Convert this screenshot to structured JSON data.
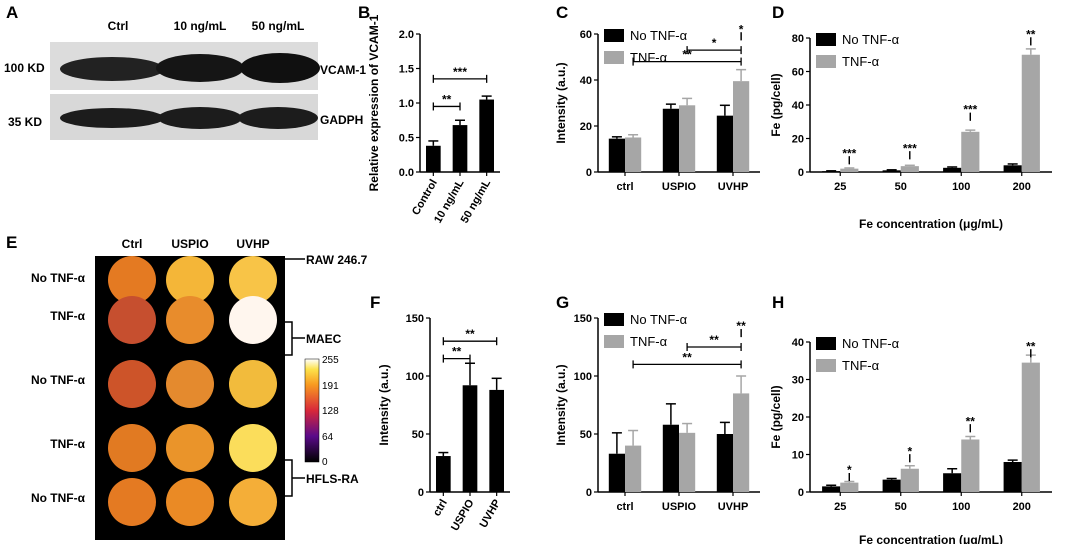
{
  "panel_letters": [
    "A",
    "B",
    "C",
    "D",
    "E",
    "F",
    "G",
    "H"
  ],
  "blot": {
    "lanes": [
      "Ctrl",
      "10 ng/mL",
      "50 ng/mL"
    ],
    "rows": [
      {
        "weight": "100 KD",
        "protein": "VCAM-1"
      },
      {
        "weight": "35 KD",
        "protein": "GADPH"
      }
    ]
  },
  "imaging": {
    "columns": [
      "Ctrl",
      "USPIO",
      "UVHP"
    ],
    "rows": [
      "No TNF-α",
      "TNF-α",
      "No TNF-α",
      "TNF-α",
      "No TNF-α"
    ],
    "groups": [
      "RAW 246.7",
      "MAEC",
      "HFLS-RA"
    ],
    "colorbar_ticks": [
      "255",
      "191",
      "128",
      "64",
      "0"
    ],
    "well_colors": [
      [
        "#e47a22",
        "#f4b638",
        "#f8c447"
      ],
      [
        "#c64f2f",
        "#e88c2c",
        "#fff6ee"
      ],
      [
        "#cd5429",
        "#e48a2e",
        "#f2bb3c"
      ],
      [
        "#e17a22",
        "#ea942a",
        "#fbdd5b"
      ],
      [
        "#e47a22",
        "#ea8a25",
        "#f4ae38"
      ]
    ]
  },
  "colors": {
    "black": "#000000",
    "gray": "#a6a6a6"
  },
  "chart_data": [
    {
      "id": "B",
      "type": "bar",
      "ylabel": "Relative expression of VCAM-1",
      "categories": [
        "Control",
        "10 ng/mL",
        "50 ng/mL"
      ],
      "values": [
        0.38,
        0.68,
        1.05
      ],
      "errors": [
        0.07,
        0.07,
        0.05
      ],
      "ylim": [
        0,
        2.0
      ],
      "yticks": [
        "0.0",
        "0.5",
        "1.0",
        "1.5",
        "2.0"
      ],
      "sig": [
        {
          "text": "***",
          "a": 0,
          "b": 2,
          "y": 1.35
        },
        {
          "text": "**",
          "a": 0,
          "b": 1,
          "y": 0.95
        }
      ]
    },
    {
      "id": "C",
      "type": "bar",
      "ylabel": "Intensity (a.u.)",
      "categories": [
        "ctrl",
        "USPIO",
        "UVHP"
      ],
      "series": [
        {
          "name": "No TNF-α",
          "values": [
            14.5,
            27.5,
            24.5
          ],
          "errors": [
            0.8,
            2,
            4.5
          ]
        },
        {
          "name": "TNF-α",
          "values": [
            15,
            29,
            39.5
          ],
          "errors": [
            1.2,
            3,
            5
          ]
        }
      ],
      "ylim": [
        0,
        60
      ],
      "yticks": [
        "0",
        "20",
        "40",
        "60"
      ],
      "sig": [
        {
          "text": "*",
          "a": "2b",
          "b": "2c",
          "y": 59
        },
        {
          "text": "*",
          "a": "1c",
          "b": "2c",
          "y": 53
        },
        {
          "text": "**",
          "a": "0c",
          "b": "2c",
          "y": 48
        }
      ]
    },
    {
      "id": "D",
      "type": "bar",
      "xlabel": "Fe concentration (μg/mL)",
      "ylabel": "Fe (pg/cell)",
      "categories": [
        "25",
        "50",
        "100",
        "200"
      ],
      "series": [
        {
          "name": "No TNF-α",
          "values": [
            0.5,
            1,
            2.5,
            4
          ],
          "errors": [
            0.2,
            0.3,
            0.5,
            0.8
          ]
        },
        {
          "name": "TNF-α",
          "values": [
            2,
            3.5,
            24,
            70
          ],
          "errors": [
            0.4,
            0.5,
            1,
            3.5
          ]
        }
      ],
      "ylim": [
        0,
        80
      ],
      "yticks": [
        "0",
        "20",
        "40",
        "60",
        "80"
      ],
      "sig": [
        {
          "text": "***",
          "a": "0b",
          "b": "0c",
          "y": 7
        },
        {
          "text": "***",
          "a": "1b",
          "b": "1c",
          "y": 10
        },
        {
          "text": "***",
          "a": "2b",
          "b": "2c",
          "y": 33
        },
        {
          "text": "**",
          "a": "3b",
          "b": "3c",
          "y": 78
        }
      ]
    },
    {
      "id": "F",
      "type": "bar",
      "ylabel": "Intensity (a.u.)",
      "categories": [
        "ctrl",
        "USPIO",
        "UVHP"
      ],
      "values": [
        31,
        92,
        88
      ],
      "errors": [
        3,
        19,
        10
      ],
      "ylim": [
        0,
        150
      ],
      "yticks": [
        "0",
        "50",
        "100",
        "150"
      ],
      "sig": [
        {
          "text": "**",
          "a": 0,
          "b": 2,
          "y": 130
        },
        {
          "text": "**",
          "a": 0,
          "b": 1,
          "y": 115
        }
      ]
    },
    {
      "id": "G",
      "type": "bar",
      "ylabel": "Intensity (a.u.)",
      "categories": [
        "ctrl",
        "USPIO",
        "UVHP"
      ],
      "series": [
        {
          "name": "No TNF-α",
          "values": [
            33,
            58,
            50
          ],
          "errors": [
            18,
            18,
            10
          ]
        },
        {
          "name": "TNF-α",
          "values": [
            40,
            51,
            85
          ],
          "errors": [
            13,
            8,
            15
          ]
        }
      ],
      "ylim": [
        0,
        150
      ],
      "yticks": [
        "0",
        "50",
        "100",
        "150"
      ],
      "sig": [
        {
          "text": "**",
          "a": "2b",
          "b": "2c",
          "y": 137
        },
        {
          "text": "**",
          "a": "1c",
          "b": "2c",
          "y": 125
        },
        {
          "text": "**",
          "a": "0c",
          "b": "2c",
          "y": 110
        }
      ]
    },
    {
      "id": "H",
      "type": "bar",
      "xlabel": "Fe concentration (μg/mL)",
      "ylabel": "Fe (pg/cell)",
      "categories": [
        "25",
        "50",
        "100",
        "200"
      ],
      "series": [
        {
          "name": "No TNF-α",
          "values": [
            1.5,
            3.3,
            5,
            8
          ],
          "errors": [
            0.3,
            0.3,
            1.2,
            0.5
          ]
        },
        {
          "name": "TNF-α",
          "values": [
            2.5,
            6.2,
            14,
            34.5
          ],
          "errors": [
            0.3,
            0.8,
            0.8,
            2
          ]
        }
      ],
      "ylim": [
        0,
        40
      ],
      "yticks": [
        "0",
        "10",
        "20",
        "30",
        "40"
      ],
      "sig": [
        {
          "text": "*",
          "a": "0b",
          "b": "0c",
          "y": 4
        },
        {
          "text": "*",
          "a": "1b",
          "b": "1c",
          "y": 9
        },
        {
          "text": "**",
          "a": "2b",
          "b": "2c",
          "y": 17
        },
        {
          "text": "**",
          "a": "3b",
          "b": "3c",
          "y": 37
        }
      ]
    }
  ]
}
